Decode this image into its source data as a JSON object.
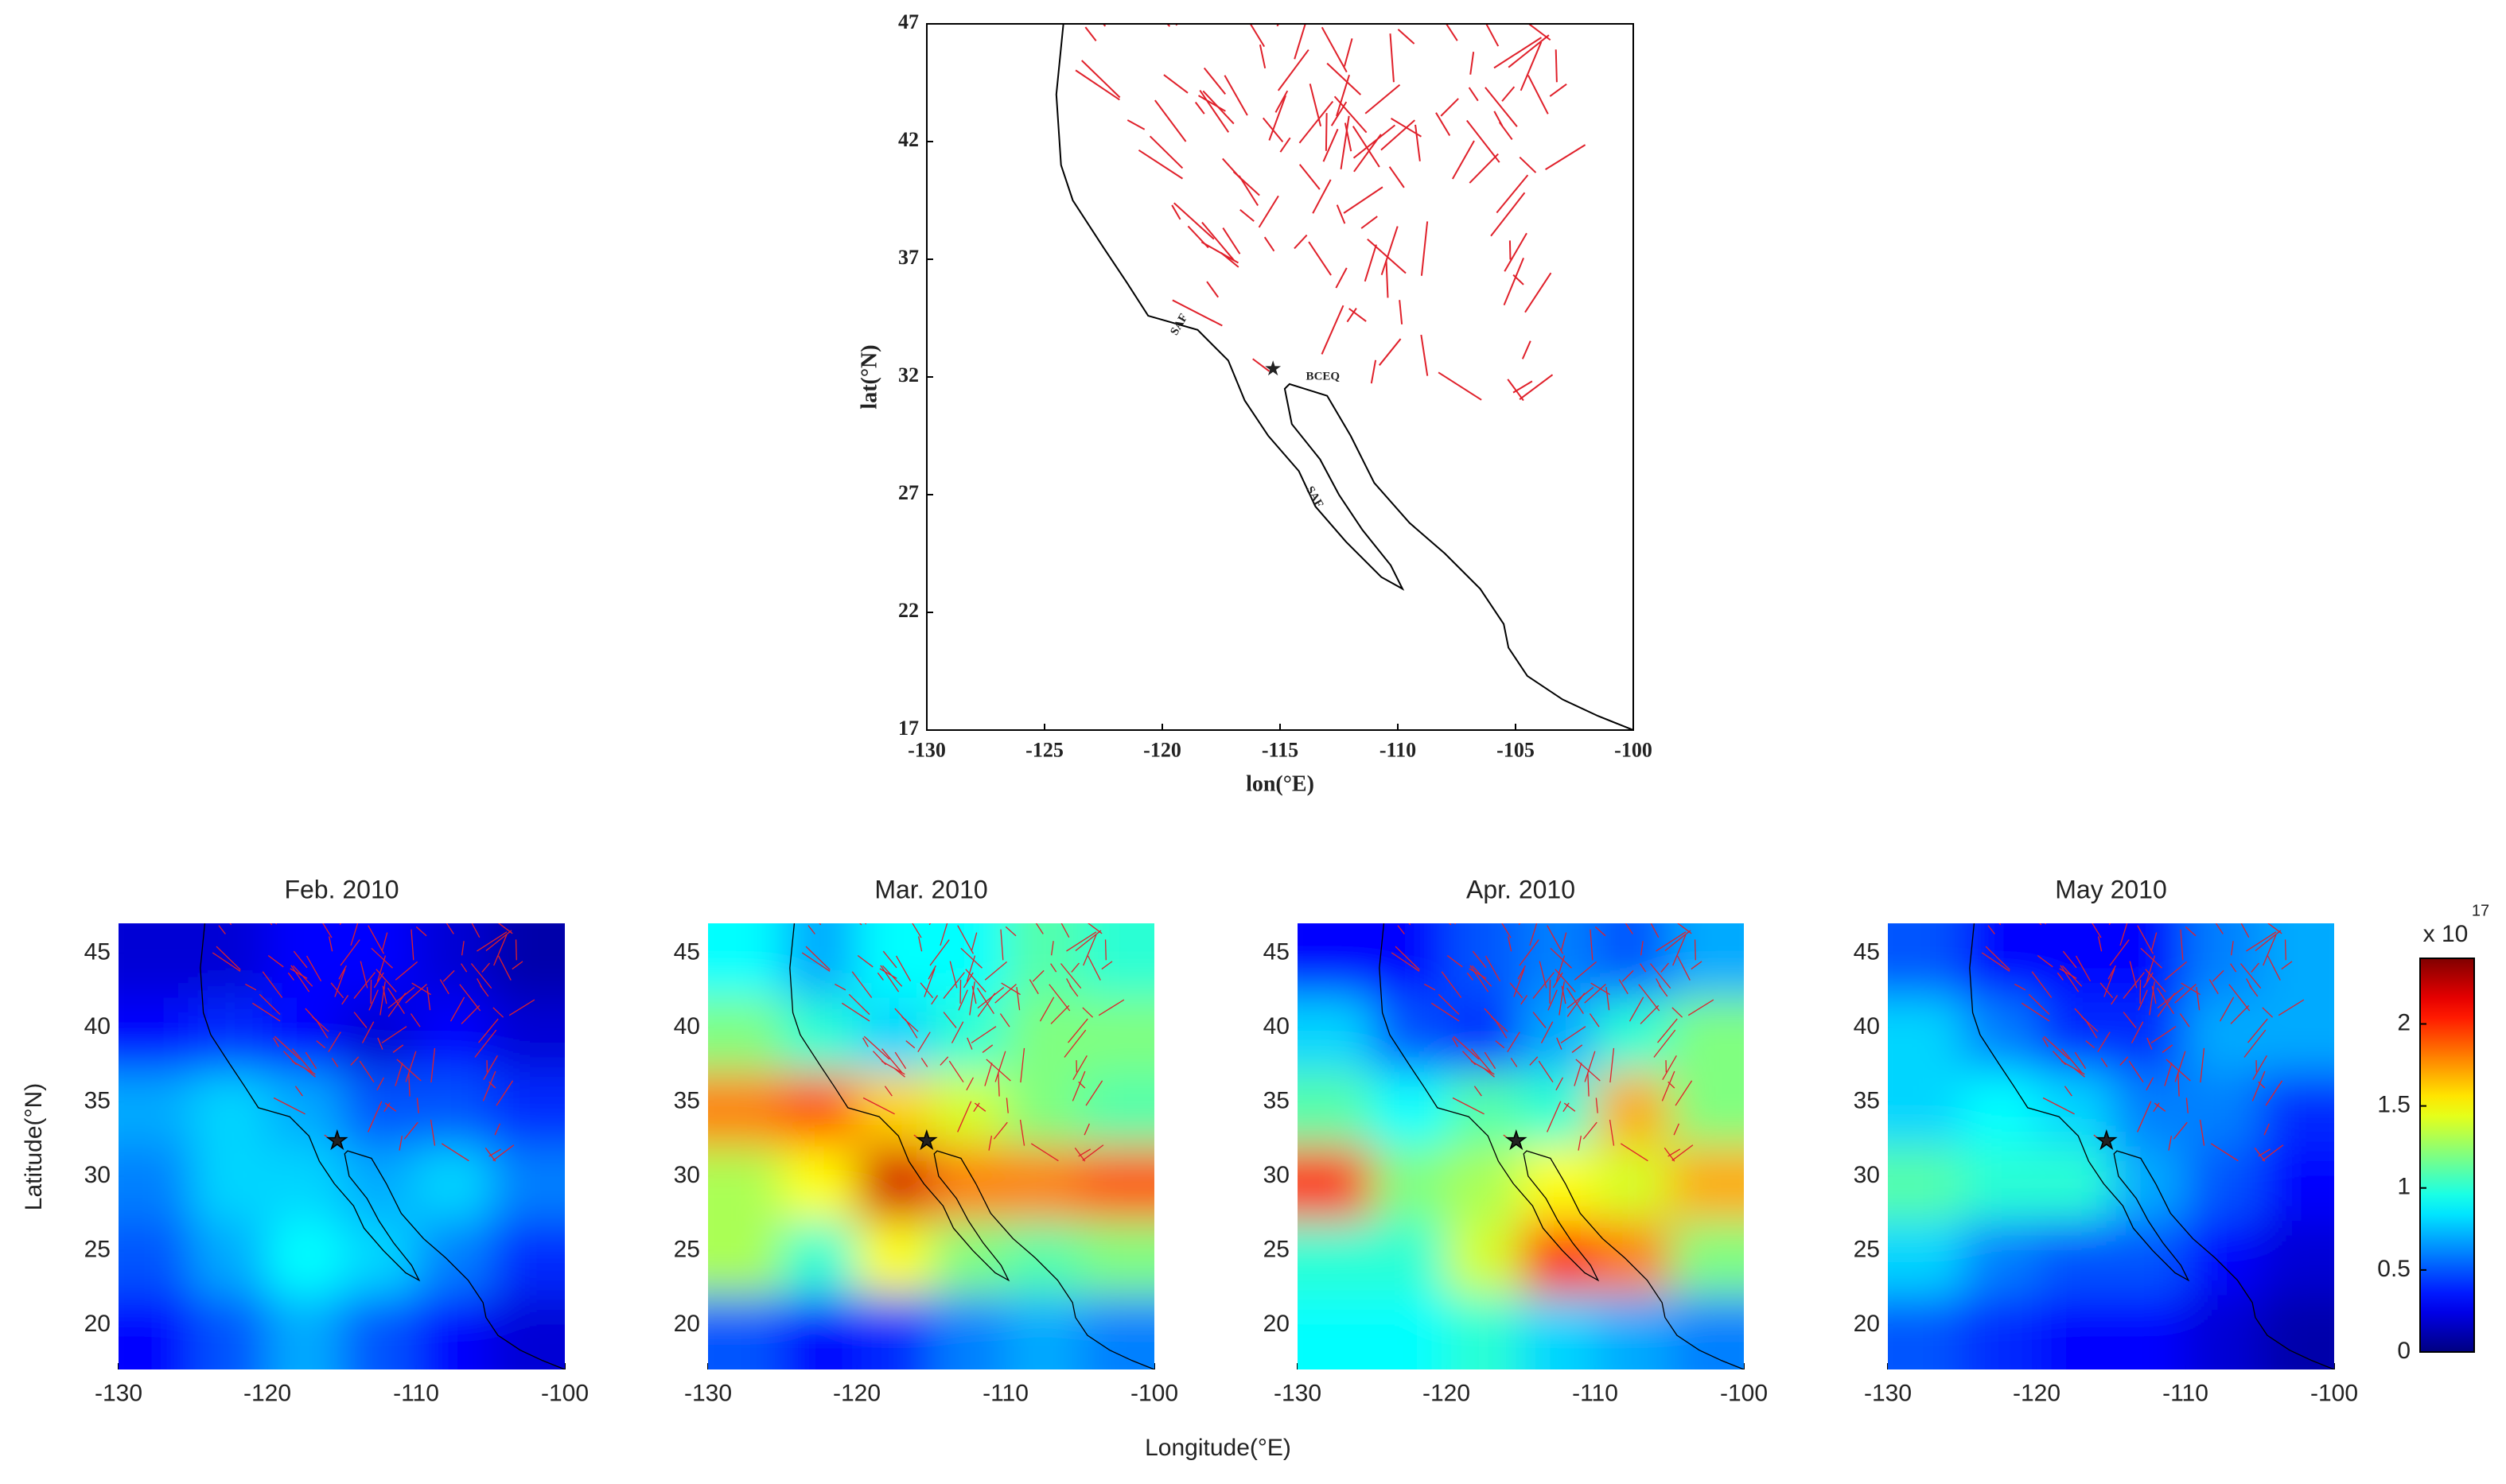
{
  "chart_data": [
    {
      "type": "map",
      "xlabel": "lon(°E)",
      "ylabel": "lat(°N)",
      "xlim": [
        -130,
        -100
      ],
      "xticks": [
        -130,
        -125,
        -120,
        -115,
        -110,
        -105,
        -100
      ],
      "ylim": [
        17,
        47
      ],
      "yticks": [
        17,
        22,
        27,
        32,
        37,
        42,
        47
      ],
      "annotations": [
        "SAF",
        "SAF",
        "BCEQ"
      ]
    },
    {
      "type": "heatmap",
      "title": "Feb. 2010",
      "xlim": [
        -130,
        -100
      ],
      "xticks": [
        -130,
        -120,
        -110,
        -100
      ],
      "ylim": [
        17,
        47
      ],
      "yticks": [
        20,
        25,
        30,
        35,
        40,
        45
      ],
      "z": [
        [
          0.2,
          0.2,
          0.3,
          0.3,
          0.2,
          0.1
        ],
        [
          0.3,
          0.4,
          0.3,
          0.2,
          0.3,
          0.2
        ],
        [
          0.7,
          0.8,
          0.7,
          0.5,
          0.5,
          0.4
        ],
        [
          0.6,
          0.8,
          0.8,
          0.7,
          0.8,
          0.6
        ],
        [
          0.5,
          0.7,
          0.9,
          0.8,
          0.6,
          0.4
        ],
        [
          0.3,
          0.5,
          0.7,
          0.5,
          0.3,
          0.2
        ]
      ]
    },
    {
      "type": "heatmap",
      "title": "Mar. 2010",
      "xlim": [
        -130,
        -100
      ],
      "xticks": [
        -130,
        -120,
        -110,
        -100
      ],
      "ylim": [
        17,
        47
      ],
      "yticks": [
        20,
        25,
        30,
        35,
        40,
        45
      ],
      "z": [
        [
          0.9,
          0.7,
          0.9,
          0.9,
          1.1,
          1.0
        ],
        [
          1.2,
          1.0,
          0.8,
          1.0,
          1.2,
          1.2
        ],
        [
          1.8,
          1.9,
          1.6,
          1.4,
          1.2,
          1.1
        ],
        [
          1.3,
          1.5,
          2.2,
          1.8,
          1.8,
          1.9
        ],
        [
          1.3,
          1.0,
          1.5,
          1.2,
          1.1,
          1.2
        ],
        [
          0.5,
          0.3,
          0.4,
          0.6,
          0.7,
          0.6
        ]
      ]
    },
    {
      "type": "heatmap",
      "title": "Apr. 2010",
      "xlim": [
        -130,
        -100
      ],
      "xticks": [
        -130,
        -120,
        -110,
        -100
      ],
      "ylim": [
        17,
        47
      ],
      "yticks": [
        20,
        25,
        30,
        35,
        40,
        45
      ],
      "z": [
        [
          0.3,
          0.3,
          0.5,
          0.6,
          0.5,
          0.7
        ],
        [
          0.8,
          0.5,
          0.4,
          0.7,
          1.0,
          1.2
        ],
        [
          1.1,
          0.9,
          1.1,
          1.0,
          1.7,
          1.2
        ],
        [
          2.0,
          1.2,
          1.3,
          1.5,
          1.4,
          1.7
        ],
        [
          1.0,
          1.0,
          1.4,
          2.0,
          1.8,
          1.2
        ],
        [
          0.9,
          0.9,
          1.0,
          0.8,
          0.7,
          0.6
        ]
      ]
    },
    {
      "type": "heatmap",
      "title": "May 2010",
      "xlim": [
        -130,
        -100
      ],
      "xticks": [
        -130,
        -120,
        -110,
        -100
      ],
      "ylim": [
        17,
        47
      ],
      "yticks": [
        20,
        25,
        30,
        35,
        40,
        45
      ],
      "z": [
        [
          0.5,
          0.3,
          0.3,
          0.3,
          0.6,
          0.7
        ],
        [
          0.8,
          0.6,
          0.4,
          0.4,
          0.7,
          0.7
        ],
        [
          0.8,
          0.9,
          0.8,
          0.6,
          0.6,
          0.4
        ],
        [
          1.1,
          1.0,
          1.0,
          0.7,
          0.5,
          0.3
        ],
        [
          0.8,
          0.6,
          0.5,
          0.5,
          0.3,
          0.2
        ],
        [
          0.5,
          0.4,
          0.3,
          0.3,
          0.2,
          0.1
        ]
      ]
    },
    {
      "type": "colorbar",
      "label": "x 10",
      "exponent": "17",
      "ylim": [
        0,
        2.4
      ],
      "yticks": [
        0,
        0.5,
        1,
        1.5,
        2
      ]
    }
  ],
  "figure": {
    "xlabel": "Longitude(°E)",
    "ylabel": "Latitude(°N)"
  }
}
